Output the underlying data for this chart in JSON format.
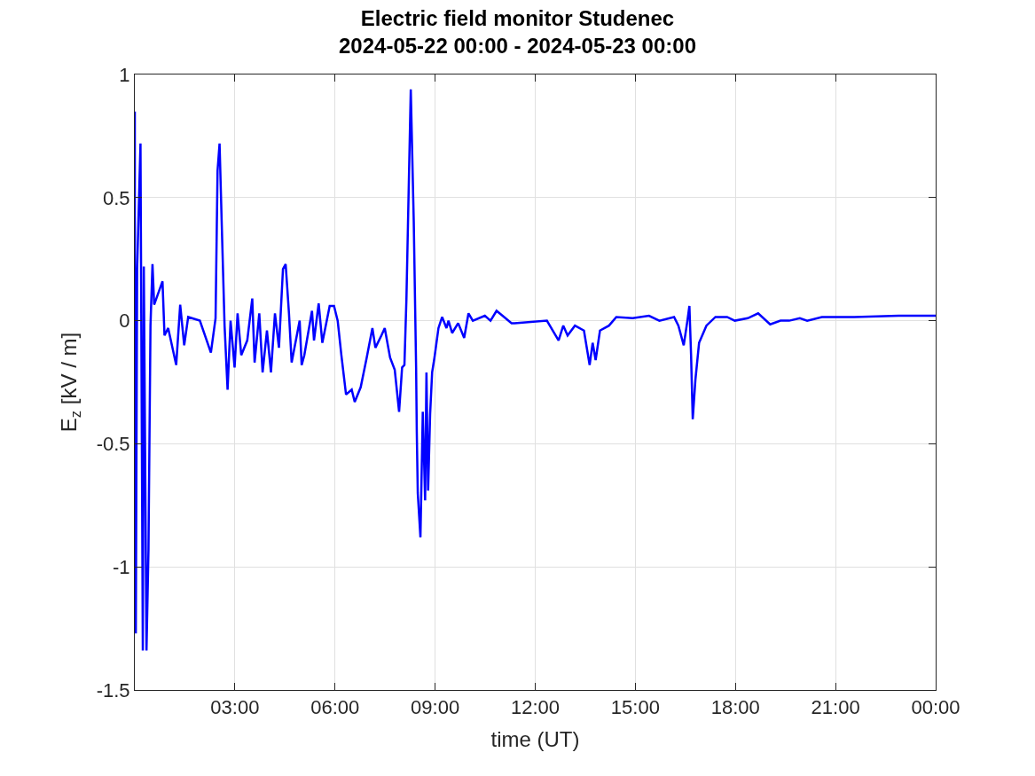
{
  "chart_data": {
    "type": "line",
    "title": "Electric field monitor Studenec\n2024-05-22 00:00 - 2024-05-23 00:00",
    "xlabel": "time (UT)",
    "ylabel": "E$_{z}$ [kV / m]",
    "series": [
      {
        "color": "#0000ff",
        "x": [
          0,
          0.0,
          0.03,
          0.07,
          0.17,
          0.24,
          0.27,
          0.35,
          0.41,
          0.47,
          0.53,
          0.58,
          0.83,
          0.89,
          1.0,
          1.24,
          1.36,
          1.48,
          1.6,
          1.95,
          2.28,
          2.42,
          2.48,
          2.54,
          2.62,
          2.69,
          2.78,
          2.87,
          2.99,
          3.08,
          3.19,
          3.37,
          3.52,
          3.59,
          3.73,
          3.83,
          3.96,
          4.08,
          4.2,
          4.32,
          4.44,
          4.52,
          4.62,
          4.7,
          4.94,
          5.0,
          5.08,
          5.31,
          5.37,
          5.51,
          5.62,
          5.84,
          5.97,
          6.08,
          6.19,
          6.33,
          6.5,
          6.59,
          6.77,
          6.95,
          7.12,
          7.21,
          7.39,
          7.49,
          7.65,
          7.79,
          7.92,
          8.01,
          8.08,
          8.14,
          8.27,
          8.36,
          8.43,
          8.45,
          8.48,
          8.56,
          8.63,
          8.7,
          8.74,
          8.79,
          8.85,
          8.91,
          8.98,
          9.1,
          9.21,
          9.34,
          9.4,
          9.51,
          9.69,
          9.87,
          10.0,
          10.13,
          10.49,
          10.66,
          10.84,
          11.02,
          11.29,
          11.38,
          12.35,
          12.7,
          12.84,
          12.97,
          13.19,
          13.46,
          13.63,
          13.72,
          13.81,
          13.94,
          14.21,
          14.43,
          14.92,
          15.41,
          15.72,
          16.16,
          16.29,
          16.45,
          16.56,
          16.62,
          16.67,
          16.72,
          16.8,
          16.91,
          17.13,
          17.4,
          17.75,
          17.98,
          18.37,
          18.68,
          19.04,
          19.35,
          19.61,
          19.93,
          20.15,
          20.59,
          21.56,
          22.89,
          24
        ],
        "values": [
          0.85,
          0.42,
          -1.27,
          0.21,
          0.72,
          -1.34,
          0.22,
          -1.34,
          -0.93,
          -0.02,
          0.23,
          0.065,
          0.16,
          -0.06,
          -0.03,
          -0.18,
          0.065,
          -0.1,
          0.015,
          0,
          -0.13,
          0.01,
          0.61,
          0.72,
          0.32,
          -0.02,
          -0.28,
          0,
          -0.19,
          0.03,
          -0.14,
          -0.08,
          0.09,
          -0.17,
          0.03,
          -0.21,
          -0.04,
          -0.21,
          0.03,
          -0.11,
          0.21,
          0.23,
          0.03,
          -0.17,
          0,
          -0.18,
          -0.14,
          0.04,
          -0.08,
          0.07,
          -0.09,
          0.06,
          0.06,
          0,
          -0.14,
          -0.3,
          -0.28,
          -0.33,
          -0.27,
          -0.15,
          -0.03,
          -0.11,
          -0.06,
          -0.03,
          -0.15,
          -0.2,
          -0.37,
          -0.19,
          -0.18,
          0.09,
          0.94,
          0.4,
          -0.19,
          -0.45,
          -0.7,
          -0.88,
          -0.37,
          -0.73,
          -0.21,
          -0.69,
          -0.38,
          -0.21,
          -0.15,
          -0.03,
          0.015,
          -0.03,
          0,
          -0.05,
          -0.01,
          -0.07,
          0.03,
          0,
          0.02,
          0,
          0.04,
          0.02,
          -0.01,
          -0.01,
          0,
          -0.08,
          -0.02,
          -0.06,
          -0.02,
          -0.04,
          -0.18,
          -0.09,
          -0.16,
          -0.04,
          -0.02,
          0.015,
          0.01,
          0.02,
          0,
          0.015,
          -0.02,
          -0.1,
          0,
          0.06,
          -0.14,
          -0.4,
          -0.24,
          -0.09,
          -0.02,
          0.015,
          0.015,
          0,
          0.01,
          0.03,
          -0.015,
          0,
          0,
          0.01,
          0,
          0.015,
          0.015,
          0.02,
          0.02
        ]
      }
    ],
    "xlim": [
      0,
      24
    ],
    "xticks": [
      {
        "value": 3,
        "label": "03:00"
      },
      {
        "value": 6,
        "label": "06:00"
      },
      {
        "value": 9,
        "label": "09:00"
      },
      {
        "value": 12,
        "label": "12:00"
      },
      {
        "value": 15,
        "label": "15:00"
      },
      {
        "value": 18,
        "label": "18:00"
      },
      {
        "value": 21,
        "label": "21:00"
      },
      {
        "value": 24,
        "label": "00:00"
      }
    ],
    "ylim": [
      -1.5,
      1
    ],
    "yticks": [
      -1.5,
      -1,
      -0.5,
      0,
      0.5,
      1
    ],
    "grid": true
  }
}
